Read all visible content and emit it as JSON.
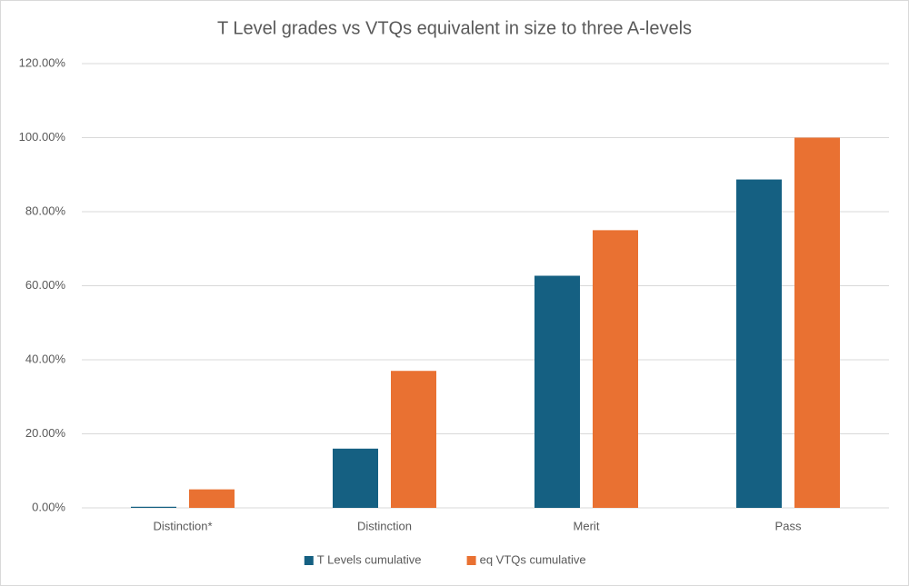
{
  "chart_data": {
    "type": "bar",
    "title": "T Level grades vs VTQs equivalent in size to three A-levels",
    "categories": [
      "Distinction*",
      "Distinction",
      "Merit",
      "Pass"
    ],
    "series": [
      {
        "name": "T Levels cumulative",
        "color": "#156082",
        "values": [
          0.3,
          16,
          62.7,
          88.7
        ]
      },
      {
        "name": "eq VTQs cumulative",
        "color": "#e97132",
        "values": [
          5,
          37,
          75,
          100
        ]
      }
    ],
    "ylim": [
      0,
      120
    ],
    "yticks": [
      {
        "value": 0,
        "label": "0.00%"
      },
      {
        "value": 20,
        "label": "20.00%"
      },
      {
        "value": 40,
        "label": "40.00%"
      },
      {
        "value": 60,
        "label": "60.00%"
      },
      {
        "value": 80,
        "label": "80.00%"
      },
      {
        "value": 100,
        "label": "100.00%"
      },
      {
        "value": 120,
        "label": "120.00%"
      }
    ],
    "grid": true,
    "legend": "bottom"
  }
}
